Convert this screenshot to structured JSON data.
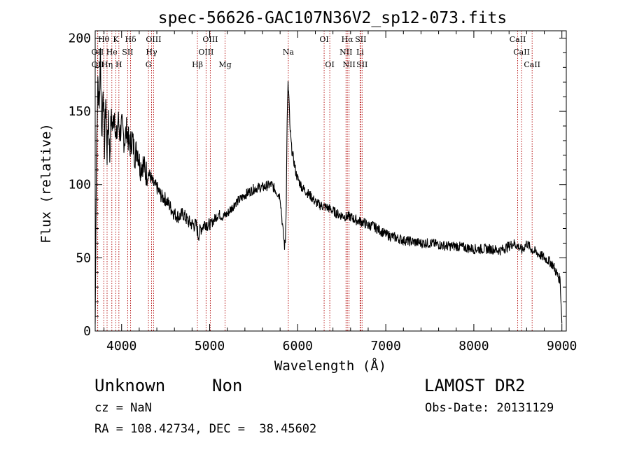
{
  "chart_data": {
    "type": "line",
    "title": "spec-56626-GAC107N36V2_sp12-073.fits",
    "xlabel": "Wavelength (Å)",
    "ylabel": "Flux (relative)",
    "xlim": [
      3700,
      9050
    ],
    "ylim": [
      0,
      205
    ],
    "xticks": [
      4000,
      5000,
      6000,
      7000,
      8000,
      9000
    ],
    "yticks": [
      0,
      50,
      100,
      150,
      200
    ],
    "grid": false,
    "series": [
      {
        "x": [
          3700,
          3715,
          3730,
          3745,
          3760,
          3775,
          3790,
          3805,
          3820,
          3835,
          3850,
          3865,
          3880,
          3900,
          3920,
          3940,
          3960,
          3980,
          4000,
          4030,
          4060,
          4090,
          4120,
          4150,
          4180,
          4210,
          4240,
          4270,
          4300,
          4330,
          4360,
          4400,
          4450,
          4500,
          4550,
          4600,
          4650,
          4700,
          4750,
          4800,
          4850,
          4870,
          4900,
          4950,
          5000,
          5050,
          5100,
          5150,
          5200,
          5250,
          5300,
          5350,
          5400,
          5450,
          5500,
          5550,
          5600,
          5650,
          5700,
          5750,
          5800,
          5830,
          5850,
          5860,
          5870,
          5880,
          5890,
          5900,
          5910,
          5930,
          5950,
          5980,
          6000,
          6050,
          6100,
          6150,
          6200,
          6250,
          6300,
          6350,
          6400,
          6450,
          6500,
          6550,
          6600,
          6650,
          6700,
          6750,
          6800,
          6850,
          6900,
          6950,
          7000,
          7100,
          7200,
          7300,
          7400,
          7500,
          7600,
          7700,
          7800,
          7900,
          8000,
          8100,
          8200,
          8300,
          8400,
          8450,
          8500,
          8550,
          8600,
          8650,
          8700,
          8750,
          8800,
          8850,
          8900,
          8950,
          8980,
          9000
        ],
        "y": [
          5,
          120,
          175,
          150,
          190,
          130,
          170,
          125,
          160,
          120,
          150,
          118,
          145,
          140,
          150,
          128,
          145,
          135,
          140,
          130,
          138,
          125,
          132,
          120,
          125,
          112,
          115,
          108,
          108,
          105,
          100,
          98,
          92,
          90,
          85,
          80,
          78,
          80,
          75,
          73,
          72,
          65,
          70,
          74,
          72,
          76,
          80,
          78,
          80,
          84,
          88,
          90,
          93,
          95,
          97,
          98,
          98,
          99,
          100,
          96,
          92,
          70,
          58,
          62,
          90,
          145,
          168,
          160,
          140,
          125,
          118,
          108,
          104,
          98,
          95,
          92,
          88,
          86,
          85,
          84,
          82,
          80,
          79,
          78,
          78,
          76,
          75,
          74,
          72,
          72,
          70,
          68,
          66,
          64,
          62,
          61,
          60,
          60,
          59,
          58,
          58,
          57,
          56,
          56,
          56,
          55,
          58,
          60,
          58,
          55,
          60,
          56,
          54,
          52,
          50,
          48,
          45,
          38,
          35,
          5
        ]
      }
    ],
    "lines_row1": [
      {
        "label": "Hθ",
        "x": 3797
      },
      {
        "label": "K",
        "x": 3934
      },
      {
        "label": "Hδ",
        "x": 4102
      },
      {
        "label": "OIII",
        "x": 4363
      },
      {
        "label": "OIII",
        "x": 5007
      },
      {
        "label": "OI",
        "x": 6300
      },
      {
        "label": "Hα",
        "x": 6563
      },
      {
        "label": "SII",
        "x": 6716
      },
      {
        "label": "CaII",
        "x": 8498
      }
    ],
    "lines_row2": [
      {
        "label": "OII",
        "x": 3727
      },
      {
        "label": "He",
        "x": 3889
      },
      {
        "label": "SII",
        "x": 4069
      },
      {
        "label": "Hγ",
        "x": 4340
      },
      {
        "label": "OIII",
        "x": 4959
      },
      {
        "label": "Na",
        "x": 5893
      },
      {
        "label": "NII",
        "x": 6548
      },
      {
        "label": "Li",
        "x": 6708
      },
      {
        "label": "CaII",
        "x": 8542
      }
    ],
    "lines_row3": [
      {
        "label": "OII",
        "x": 3729
      },
      {
        "label": "Hη",
        "x": 3835
      },
      {
        "label": "H",
        "x": 3969
      },
      {
        "label": "G",
        "x": 4305
      },
      {
        "label": "Hβ",
        "x": 4861
      },
      {
        "label": "Mg",
        "x": 5175
      },
      {
        "label": "OI",
        "x": 6364
      },
      {
        "label": "NII",
        "x": 6583
      },
      {
        "label": "SII",
        "x": 6731
      },
      {
        "label": "CaII",
        "x": 8662
      }
    ]
  },
  "info": {
    "class_label": "Unknown",
    "subclass_label": "Non",
    "survey_label": "LAMOST DR2",
    "cz_label": "cz = NaN",
    "obsdate_label": "Obs-Date: 20131129",
    "coords_label": "RA = 108.42734, DEC =  38.45602"
  }
}
